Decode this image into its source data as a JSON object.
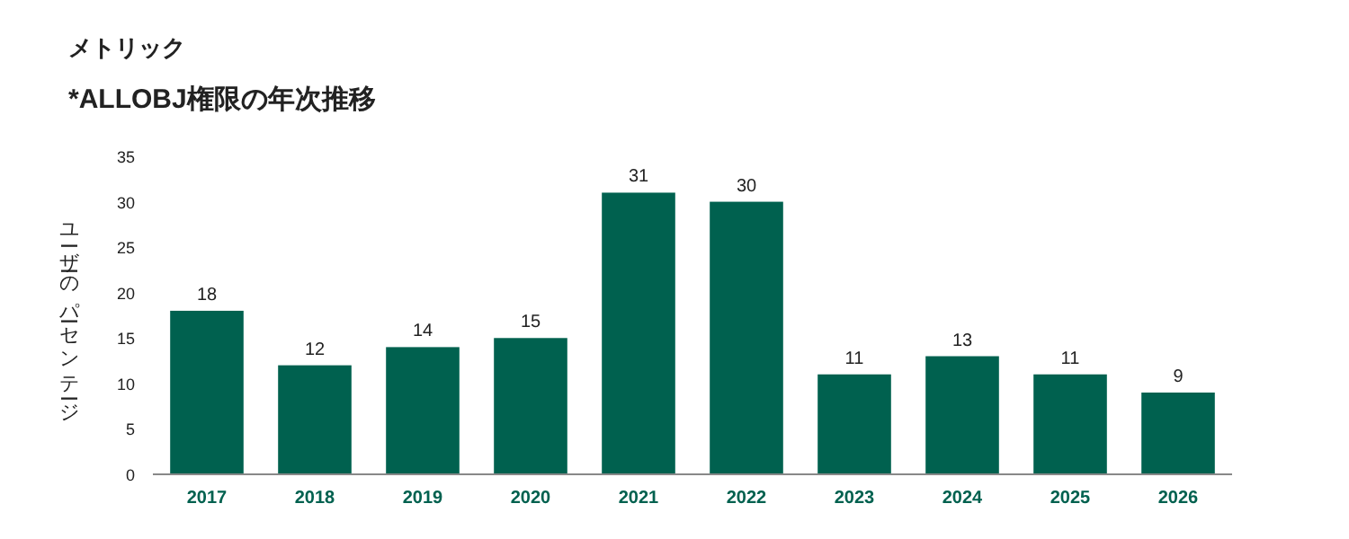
{
  "chart_data": {
    "type": "bar",
    "subtitle": "メトリック",
    "title": "*ALLOBJ権限の年次推移",
    "ylabel": "ユーザーのパーセンテージ",
    "categories": [
      "2017",
      "2018",
      "2019",
      "2020",
      "2021",
      "2022",
      "2023",
      "2024",
      "2025",
      "2026"
    ],
    "values": [
      18,
      12,
      14,
      15,
      31,
      30,
      11,
      13,
      11,
      9
    ],
    "color": "#00614f",
    "ylim": [
      0,
      35
    ],
    "yticks": [
      0,
      5,
      10,
      15,
      20,
      25,
      30,
      35
    ],
    "grid": false,
    "data_labels": true
  }
}
